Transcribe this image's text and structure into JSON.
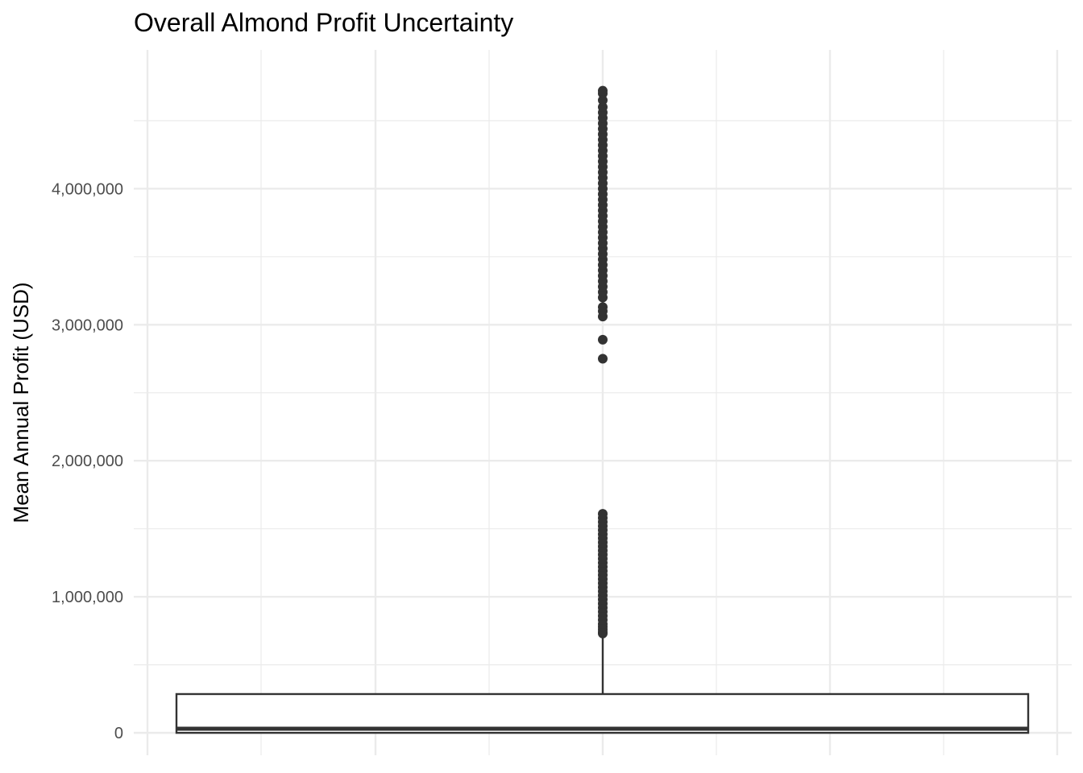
{
  "chart_data": {
    "type": "boxplot",
    "title": "Overall Almond Profit Uncertainty",
    "xlabel": "",
    "ylabel": "Mean Annual Profit (USD)",
    "ylim": [
      -165000,
      5020000
    ],
    "yticks": [
      0,
      1000000,
      2000000,
      3000000,
      4000000
    ],
    "ytick_labels": [
      "0",
      "1,000,000",
      "2,000,000",
      "3,000,000",
      "4,000,000"
    ],
    "grid": true,
    "legend": "none",
    "colors": {
      "box_stroke": "#333333",
      "box_fill": "#ffffff",
      "outlier": "#333333",
      "grid": "#ebebeb"
    },
    "box": {
      "min": 0,
      "q1": 0,
      "median": 30000,
      "q3": 285000,
      "whisker_low": 0,
      "whisker_high": 710000
    },
    "outliers": [
      730000,
      740000,
      760000,
      780000,
      800000,
      830000,
      860000,
      890000,
      920000,
      950000,
      980000,
      1010000,
      1040000,
      1070000,
      1100000,
      1130000,
      1160000,
      1190000,
      1220000,
      1250000,
      1280000,
      1310000,
      1340000,
      1370000,
      1400000,
      1430000,
      1460000,
      1490000,
      1520000,
      1550000,
      1580000,
      1610000,
      2750000,
      2890000,
      3060000,
      3100000,
      3130000,
      3200000,
      3240000,
      3280000,
      3320000,
      3360000,
      3400000,
      3440000,
      3480000,
      3520000,
      3560000,
      3600000,
      3640000,
      3680000,
      3720000,
      3760000,
      3800000,
      3840000,
      3880000,
      3920000,
      3960000,
      4000000,
      4040000,
      4080000,
      4120000,
      4160000,
      4200000,
      4240000,
      4280000,
      4320000,
      4360000,
      4400000,
      4440000,
      4480000,
      4520000,
      4560000,
      4600000,
      4650000,
      4700000,
      4720000
    ]
  }
}
